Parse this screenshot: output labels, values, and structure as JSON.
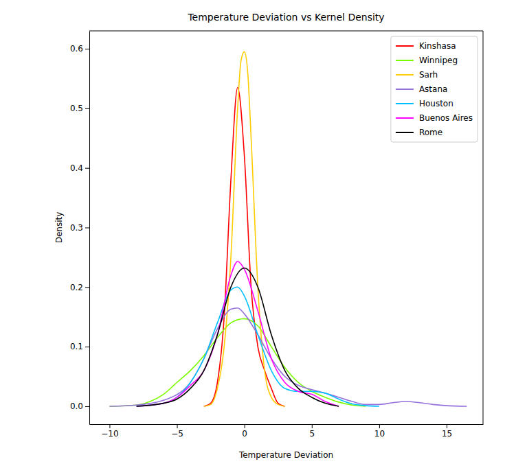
{
  "chart_data": {
    "type": "line",
    "title": "Temperature Deviation vs Kernel Density",
    "x_label": "Temperature Deviation",
    "y_label": "Density",
    "xlim": [
      -11.5,
      17.7
    ],
    "ylim": [
      -0.03,
      0.63
    ],
    "xticks": [
      {
        "value": -10,
        "label": "−10"
      },
      {
        "value": -5,
        "label": "−5"
      },
      0,
      5,
      10,
      15
    ],
    "yticks": [
      {
        "value": 0,
        "label": "0.0"
      },
      {
        "value": 0.1,
        "label": "0.1"
      },
      {
        "value": 0.2,
        "label": "0.2"
      },
      {
        "value": 0.3,
        "label": "0.3"
      },
      {
        "value": 0.4,
        "label": "0.4"
      },
      {
        "value": 0.5,
        "label": "0.5"
      },
      {
        "value": 0.6,
        "label": "0.6"
      }
    ],
    "grid": false,
    "legend": "upper right",
    "series": [
      {
        "name": "Kinshasa",
        "color": "#ff0000",
        "x": [
          -3,
          -2.5,
          -2,
          -1.5,
          -1,
          -0.5,
          0,
          0.5,
          1,
          1.5,
          2,
          2.5,
          3
        ],
        "values": [
          0,
          0.005,
          0.04,
          0.15,
          0.38,
          0.535,
          0.42,
          0.2,
          0.1,
          0.06,
          0.03,
          0.005,
          0
        ]
      },
      {
        "name": "Winnipeg",
        "color": "#7cfc00",
        "x": [
          -10,
          -8,
          -7,
          -6,
          -5,
          -4,
          -3,
          -2,
          -1,
          0,
          1,
          2,
          3,
          4,
          5,
          6,
          7,
          8,
          9
        ],
        "values": [
          0,
          0.002,
          0.008,
          0.02,
          0.04,
          0.06,
          0.085,
          0.115,
          0.14,
          0.147,
          0.135,
          0.1,
          0.065,
          0.04,
          0.025,
          0.015,
          0.007,
          0.002,
          0
        ]
      },
      {
        "name": "Sarh",
        "color": "#ffcc00",
        "x": [
          -3,
          -2.5,
          -2,
          -1.5,
          -1,
          -0.5,
          -0.25,
          0,
          0.25,
          0.5,
          1,
          1.5,
          2,
          2.5,
          3
        ],
        "values": [
          0,
          0.003,
          0.03,
          0.1,
          0.25,
          0.5,
          0.58,
          0.595,
          0.56,
          0.45,
          0.2,
          0.06,
          0.015,
          0.003,
          0
        ]
      },
      {
        "name": "Astana",
        "color": "#9370db",
        "x": [
          -10,
          -8,
          -6,
          -4,
          -3,
          -2,
          -1,
          -0.5,
          0,
          1,
          2,
          3,
          4,
          5,
          6,
          7,
          8,
          9,
          10,
          11,
          12,
          13,
          14,
          15,
          16.5
        ],
        "values": [
          0,
          0.002,
          0.01,
          0.04,
          0.08,
          0.13,
          0.163,
          0.165,
          0.155,
          0.12,
          0.08,
          0.05,
          0.035,
          0.028,
          0.022,
          0.015,
          0.008,
          0.003,
          0.003,
          0.006,
          0.008,
          0.006,
          0.003,
          0.001,
          0
        ]
      },
      {
        "name": "Houston",
        "color": "#00bfff",
        "x": [
          -8,
          -6,
          -5,
          -4,
          -3,
          -2,
          -1,
          -0.5,
          0,
          1,
          2,
          3,
          4,
          5,
          6,
          7,
          8,
          9,
          10
        ],
        "values": [
          0,
          0.005,
          0.015,
          0.04,
          0.08,
          0.14,
          0.195,
          0.2,
          0.185,
          0.12,
          0.06,
          0.03,
          0.025,
          0.025,
          0.022,
          0.012,
          0.004,
          0.001,
          0
        ]
      },
      {
        "name": "Buenos Aires",
        "color": "#ff00ff",
        "x": [
          -8,
          -6,
          -5,
          -4,
          -3,
          -2,
          -1,
          -0.5,
          0,
          1,
          2,
          3,
          4,
          5,
          6,
          7
        ],
        "values": [
          0,
          0.005,
          0.015,
          0.035,
          0.06,
          0.12,
          0.22,
          0.243,
          0.23,
          0.16,
          0.08,
          0.04,
          0.025,
          0.02,
          0.008,
          0
        ]
      },
      {
        "name": "Rome",
        "color": "#000000",
        "x": [
          -8,
          -6,
          -5,
          -4,
          -3,
          -2,
          -1,
          0,
          1,
          2,
          3,
          4,
          5,
          6,
          7
        ],
        "values": [
          0,
          0.005,
          0.012,
          0.03,
          0.06,
          0.12,
          0.2,
          0.232,
          0.2,
          0.12,
          0.06,
          0.03,
          0.015,
          0.005,
          0
        ]
      }
    ]
  }
}
